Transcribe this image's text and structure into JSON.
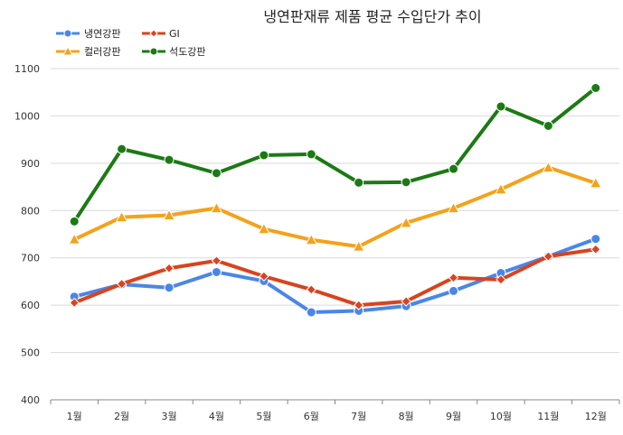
{
  "chart_data": {
    "type": "line",
    "title": "냉연판재류 제품 평균 수입단가 추이",
    "xlabel": "",
    "ylabel": "",
    "ylim": [
      400,
      1100
    ],
    "yticks": [
      400,
      500,
      600,
      700,
      800,
      900,
      1000,
      1100
    ],
    "grid": true,
    "legend_position": "top-left",
    "categories": [
      "1월",
      "2월",
      "3월",
      "4월",
      "5월",
      "6월",
      "7월",
      "8월",
      "9월",
      "10월",
      "11월",
      "12월"
    ],
    "series": [
      {
        "name": "냉연강판",
        "color": "#4a86e8",
        "marker": "circle",
        "values": [
          618,
          644,
          637,
          670,
          651,
          585,
          588,
          598,
          630,
          668,
          703,
          740
        ]
      },
      {
        "name": "GI",
        "color": "#d9431e",
        "marker": "diamond",
        "values": [
          605,
          645,
          678,
          694,
          661,
          633,
          600,
          608,
          658,
          654,
          703,
          718
        ]
      },
      {
        "name": "컬러강판",
        "color": "#f4a21b",
        "marker": "triangle",
        "values": [
          739,
          786,
          790,
          805,
          761,
          738,
          724,
          774,
          805,
          845,
          891,
          858
        ]
      },
      {
        "name": "석도강판",
        "color": "#1b7a14",
        "marker": "circle",
        "values": [
          777,
          930,
          907,
          879,
          917,
          919,
          859,
          860,
          888,
          1020,
          979,
          1059
        ]
      }
    ]
  }
}
